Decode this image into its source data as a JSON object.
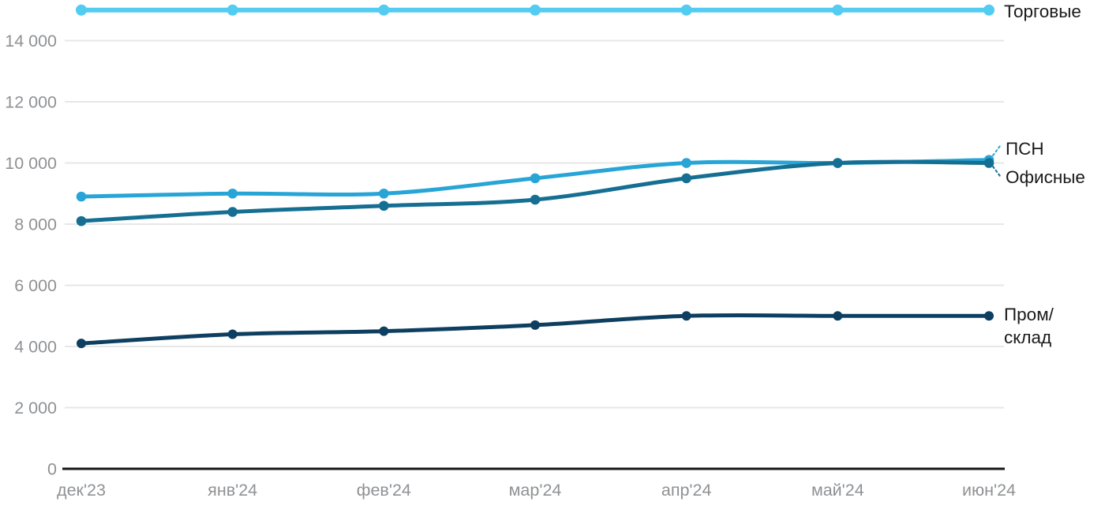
{
  "chart_data": {
    "type": "line",
    "title": "",
    "xlabel": "",
    "ylabel": "",
    "x": [
      "дек'23",
      "янв'24",
      "фев'24",
      "мар'24",
      "апр'24",
      "май'24",
      "июн'24"
    ],
    "series": [
      {
        "name": "Торговые",
        "color": "#53CCF1",
        "values": [
          15000,
          15000,
          15000,
          15000,
          15000,
          15000,
          15000
        ]
      },
      {
        "name": "ПСН",
        "color": "#27A5D6",
        "values": [
          8900,
          9000,
          9000,
          9500,
          10000,
          10000,
          10100
        ]
      },
      {
        "name": "Офисные",
        "color": "#156F93",
        "values": [
          8100,
          8400,
          8600,
          8800,
          9500,
          10000,
          10000
        ]
      },
      {
        "name": "Пром/склад",
        "color": "#0E3F60",
        "values": [
          4100,
          4400,
          4500,
          4700,
          5000,
          5000,
          5000
        ]
      }
    ],
    "ylim": [
      0,
      15300
    ],
    "yticks": [
      0,
      2000,
      4000,
      6000,
      8000,
      10000,
      12000,
      14000
    ],
    "ytick_labels": [
      "0",
      "2 000",
      "4 000",
      "6 000",
      "8 000",
      "10 000",
      "12 000",
      "14 000"
    ],
    "grid": "horizontal",
    "legend_position": "right-end-of-lines"
  },
  "end_labels": {
    "torgovye": "Торговые",
    "psn": "ПСН",
    "ofisnye": "Офисные",
    "prom_line1": "Пром/",
    "prom_line2": "склад"
  },
  "colors": {
    "axis": "#161616",
    "grid": "#E7E7E7",
    "tick_text": "#8F9194",
    "label_text": "#1A1A1A",
    "leader_psn": "#27A5D6",
    "leader_ofisnye": "#156F93"
  }
}
